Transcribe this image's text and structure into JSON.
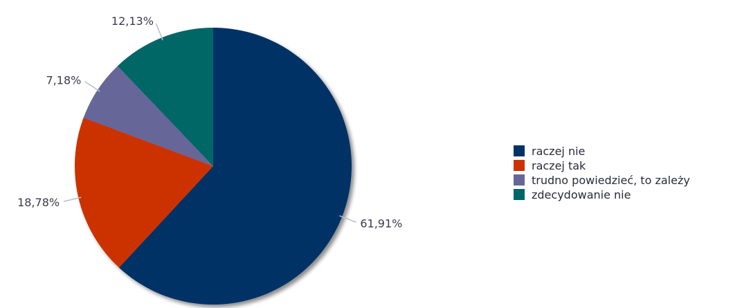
{
  "chart_data": {
    "type": "pie",
    "title": "",
    "legend_position": "right",
    "categories": [
      "raczej nie",
      "raczej tak",
      "trudno powiedzieć, to zależy",
      "zdecydowanie nie"
    ],
    "values": [
      61.91,
      18.78,
      7.18,
      12.13
    ],
    "value_labels": [
      "61,91%",
      "18,78%",
      "7,18%",
      "12,13%"
    ],
    "colors": [
      "#003366",
      "#cc3300",
      "#666699",
      "#006666"
    ]
  }
}
